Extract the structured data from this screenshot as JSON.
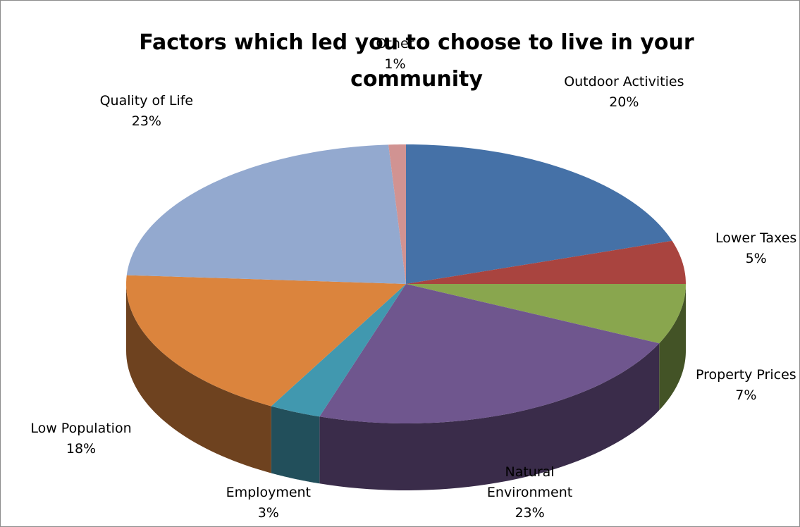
{
  "chart_data": {
    "type": "pie",
    "title": "Factors which led you to choose to live in your community",
    "categories": [
      "Outdoor Activities",
      "Lower Taxes",
      "Property Prices",
      "Natural Environment",
      "Employment",
      "Low Population",
      "Quality of Life",
      "Other"
    ],
    "values": [
      20,
      5,
      7,
      23,
      3,
      18,
      23,
      1
    ],
    "labels": [
      {
        "name": "Outdoor Activities",
        "name_lines": [
          "Outdoor Activities"
        ],
        "percent": "20%"
      },
      {
        "name": "Lower Taxes",
        "name_lines": [
          "Lower Taxes"
        ],
        "percent": "5%"
      },
      {
        "name": "Property Prices",
        "name_lines": [
          "Property Prices"
        ],
        "percent": "7%"
      },
      {
        "name": "Natural Environment",
        "name_lines": [
          "Natural",
          "Environment"
        ],
        "percent": "23%"
      },
      {
        "name": "Employment",
        "name_lines": [
          "Employment"
        ],
        "percent": "3%"
      },
      {
        "name": "Low Population",
        "name_lines": [
          "Low Population"
        ],
        "percent": "18%"
      },
      {
        "name": "Quality of Life",
        "name_lines": [
          "Quality of Life"
        ],
        "percent": "23%"
      },
      {
        "name": "Other",
        "name_lines": [
          "Other"
        ],
        "percent": "1%"
      }
    ],
    "colors": [
      "#4571a7",
      "#a9443f",
      "#89a64e",
      "#6f568e",
      "#4198af",
      "#db843d",
      "#93a9cf",
      "#d19392"
    ],
    "side_colors": [
      "#2f4e74",
      "#6c2b28",
      "#435326",
      "#3a2c4a",
      "#224f5b",
      "#6e421f",
      "#4a5568",
      "#7a4e4d"
    ],
    "style": "3d-exploded-none",
    "legend": "none",
    "data_labels": "name-and-percent"
  }
}
